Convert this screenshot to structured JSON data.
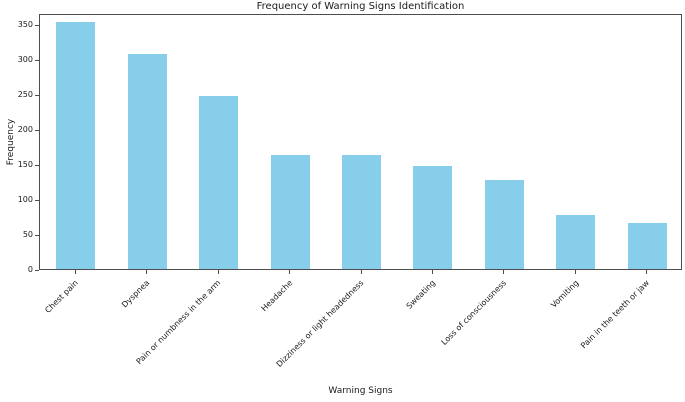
{
  "figure": {
    "title": "Frequency of Warning Signs Identification",
    "xlabel": "Warning Signs",
    "ylabel": "Frequency"
  },
  "chart_data": {
    "type": "bar",
    "title": "Frequency of Warning Signs Identification",
    "xlabel": "Warning Signs",
    "ylabel": "Frequency",
    "categories": [
      "Chest pain",
      "Dyspnea",
      "Pain or numbness in the arm",
      "Headache",
      "Dizziness or light headedness",
      "Sweating",
      "Loss of consciousness",
      "Vomiting",
      "Pain in the teeth or jaw"
    ],
    "values": [
      352,
      306,
      246,
      163,
      163,
      147,
      127,
      77,
      65
    ],
    "yticks": [
      0,
      50,
      100,
      150,
      200,
      250,
      300,
      350
    ],
    "ylim": [
      0,
      365
    ],
    "bar_color": "#87CEEB",
    "bar_width_fraction": 0.55,
    "x_tick_rotation_deg": 45,
    "grid": false,
    "legend_position": "none"
  }
}
